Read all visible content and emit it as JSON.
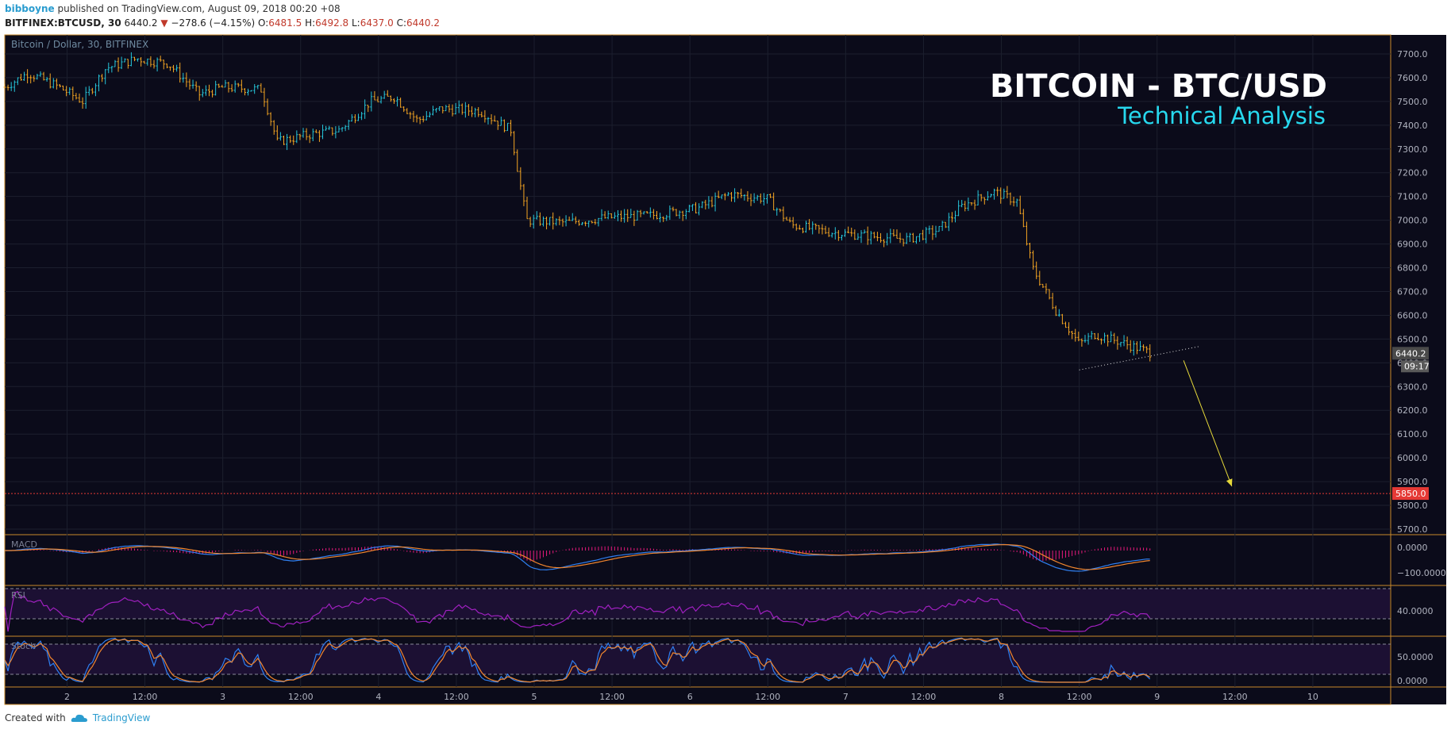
{
  "header": {
    "user": "bibboyne",
    "published": "published on TradingView.com, August 09, 2018 00:20 +08",
    "symbol": "BITFINEX:BTCUSD, 30",
    "price": "6440.2",
    "arrow": "▼",
    "change": "−278.6 (−4.15%)",
    "o_label": "O:",
    "o_value": "6481.5",
    "h_label": "H:",
    "h_value": "6492.8",
    "l_label": "L:",
    "l_value": "6437.0",
    "c_label": "C:",
    "c_value": "6440.2"
  },
  "footer": {
    "created": "Created with",
    "brand": "TradingView"
  },
  "colors": {
    "background": "#0b0b1a",
    "up": "#26c6da",
    "down": "#f5a623",
    "support": "#e53935",
    "title": "#ffffff",
    "subtitle": "#27d8ee",
    "arrow": "#e6d93a",
    "macd_line": "#2f7ff0",
    "signal_line": "#f2862e",
    "histogram": "#e5197b",
    "rsi_line": "#a020c0",
    "stoch_k": "#2f7ff0",
    "stoch_d": "#f2862e"
  },
  "chart_data": {
    "type": "candlestick",
    "chart_label": "Bitcoin / Dollar, 30, BITFINEX",
    "overlay_title": "BITCOIN - BTC/USD",
    "overlay_subtitle": "Technical Analysis",
    "ylim": [
      5680,
      7780
    ],
    "y_ticks": [
      5700,
      5800,
      5900,
      6000,
      6100,
      6200,
      6300,
      6400,
      6500,
      6600,
      6700,
      6800,
      6900,
      7000,
      7100,
      7200,
      7300,
      7400,
      7500,
      7600,
      7700
    ],
    "y_tick_labels": [
      "5700.0",
      "5800.0",
      "5900.0",
      "6000.0",
      "6100.0",
      "6200.0",
      "6300.0",
      "6400.0",
      "6500.0",
      "6600.0",
      "6700.0",
      "6800.0",
      "6900.0",
      "7000.0",
      "7100.0",
      "7200.0",
      "7300.0",
      "7400.0",
      "7500.0",
      "7600.0",
      "7700.0"
    ],
    "x_range_days": [
      1.6,
      10.5
    ],
    "x_ticks": [
      {
        "day": 2,
        "label": "2"
      },
      {
        "day": 2.5,
        "label": "12:00"
      },
      {
        "day": 3,
        "label": "3"
      },
      {
        "day": 3.5,
        "label": "12:00"
      },
      {
        "day": 4,
        "label": "4"
      },
      {
        "day": 4.5,
        "label": "12:00"
      },
      {
        "day": 5,
        "label": "5"
      },
      {
        "day": 5.5,
        "label": "12:00"
      },
      {
        "day": 6,
        "label": "6"
      },
      {
        "day": 6.5,
        "label": "12:00"
      },
      {
        "day": 7,
        "label": "7"
      },
      {
        "day": 7.5,
        "label": "12:00"
      },
      {
        "day": 8,
        "label": "8"
      },
      {
        "day": 8.5,
        "label": "12:00"
      },
      {
        "day": 9,
        "label": "9"
      },
      {
        "day": 9.5,
        "label": "12:00"
      },
      {
        "day": 10,
        "label": "10"
      }
    ],
    "path_anchors": [
      [
        1.6,
        7560
      ],
      [
        1.75,
        7620
      ],
      [
        1.95,
        7560
      ],
      [
        2.1,
        7500
      ],
      [
        2.25,
        7640
      ],
      [
        2.45,
        7680
      ],
      [
        2.65,
        7660
      ],
      [
        2.85,
        7530
      ],
      [
        3.0,
        7560
      ],
      [
        3.25,
        7550
      ],
      [
        3.35,
        7330
      ],
      [
        3.55,
        7360
      ],
      [
        3.75,
        7380
      ],
      [
        3.95,
        7500
      ],
      [
        4.1,
        7520
      ],
      [
        4.25,
        7420
      ],
      [
        4.4,
        7470
      ],
      [
        4.65,
        7460
      ],
      [
        4.85,
        7380
      ],
      [
        4.95,
        7000
      ],
      [
        5.2,
        6990
      ],
      [
        5.45,
        7010
      ],
      [
        5.75,
        7020
      ],
      [
        6.05,
        7050
      ],
      [
        6.25,
        7110
      ],
      [
        6.5,
        7090
      ],
      [
        6.65,
        6980
      ],
      [
        6.9,
        6950
      ],
      [
        7.2,
        6930
      ],
      [
        7.4,
        6920
      ],
      [
        7.6,
        6960
      ],
      [
        7.75,
        7060
      ],
      [
        7.95,
        7120
      ],
      [
        8.1,
        7080
      ],
      [
        8.2,
        6800
      ],
      [
        8.35,
        6620
      ],
      [
        8.5,
        6480
      ],
      [
        8.6,
        6520
      ],
      [
        8.75,
        6490
      ],
      [
        8.97,
        6440
      ]
    ],
    "last_price": 6440.2,
    "last_price_label": "6440.2",
    "countdown_label": "09:17",
    "support_level": 5850,
    "support_label": "5850.0",
    "trendline": {
      "start": [
        8.5,
        6370
      ],
      "end": [
        9.28,
        6470
      ]
    },
    "projection_arrow": {
      "start": [
        9.17,
        6410
      ],
      "end": [
        9.48,
        5880
      ]
    },
    "indicators": {
      "macd": {
        "label": "MACD",
        "tick_labels": [
          "0.0000",
          "−100.0000"
        ]
      },
      "rsi": {
        "label": "RSI",
        "tick_labels": [
          "40.0000"
        ]
      },
      "stoch": {
        "label": "Stoch",
        "tick_labels": [
          "50.0000",
          "0.0000"
        ]
      }
    }
  }
}
